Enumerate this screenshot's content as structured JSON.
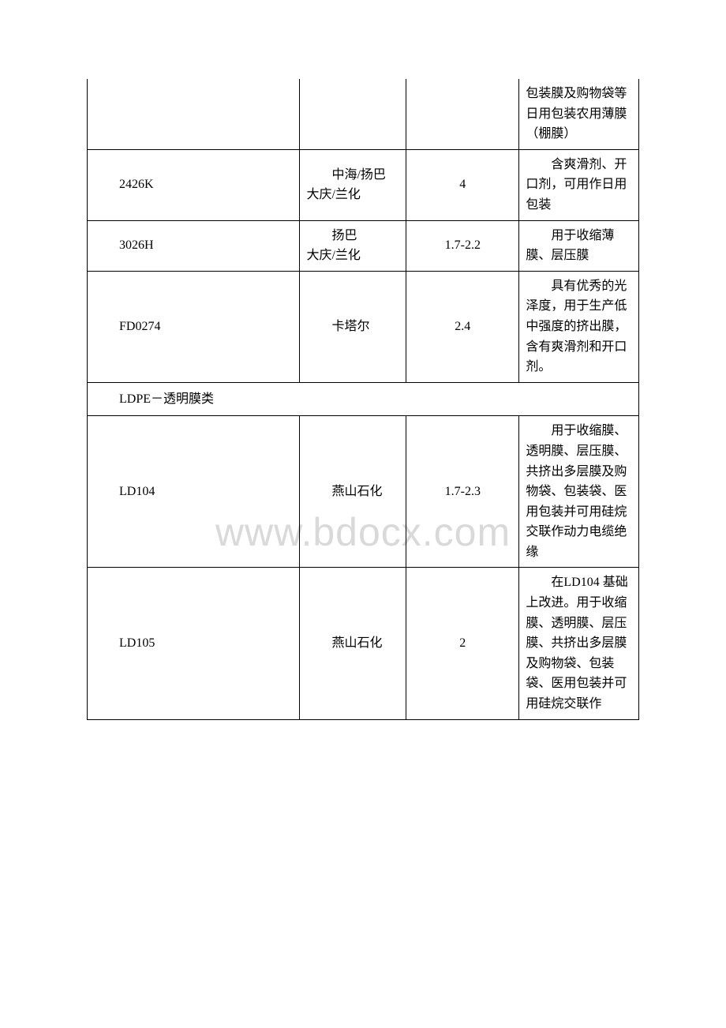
{
  "watermark_text": "www.bdocx.com",
  "watermark_color": "#d9d9d9",
  "border_color": "#000000",
  "text_color": "#000000",
  "background_color": "#ffffff",
  "font_size": 16,
  "rows": [
    {
      "col1": "",
      "col2": "",
      "col3": "",
      "col4": "包装膜及购物袋等日用包装农用薄膜（棚膜）"
    },
    {
      "col1": "2426K",
      "col2": "　　中海/扬巴\n大庆/兰化",
      "col3": "4",
      "col4": "　　含爽滑剂、开口剂，可用作日用包装"
    },
    {
      "col1": "3026H",
      "col2": "　　扬巴\n大庆/兰化",
      "col3": "1.7-2.2",
      "col4": "　　用于收缩薄膜、层压膜"
    },
    {
      "col1": "FD0274",
      "col2": "卡塔尔",
      "col3": "2.4",
      "col4": "　　具有优秀的光泽度，用于生产低中强度的挤出膜，含有爽滑剂和开口剂。"
    },
    {
      "header": "LDPE－透明膜类"
    },
    {
      "col1": "LD104",
      "col2": "　　燕山石化",
      "col3": "1.7-2.3",
      "col4": "　　用于收缩膜、透明膜、层压膜、共挤出多层膜及购物袋、包装袋、医用包装并可用硅烷交联作动力电缆绝缘"
    },
    {
      "col1": "LD105",
      "col2": "　　燕山石化",
      "col3": "2",
      "col4": "　　在LD104 基础上改进。用于收缩膜、透明膜、层压膜、共挤出多层膜及购物袋、包装袋、医用包装并可用硅烷交联作"
    }
  ]
}
